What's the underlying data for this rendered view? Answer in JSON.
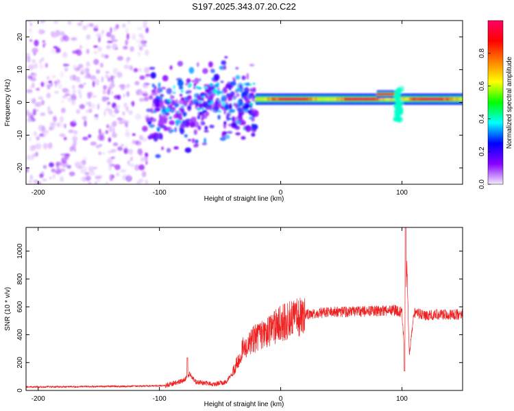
{
  "title": "S197.2025.343.07.20.C22",
  "chart_data": [
    {
      "type": "heatmap",
      "name": "spectrogram",
      "xlabel": "Height of straight line (km)",
      "ylabel": "Frequency (Hz)",
      "xlim": [
        -210,
        150
      ],
      "ylim": [
        -25,
        25
      ],
      "xticks": [
        -200,
        -100,
        0,
        100
      ],
      "yticks": [
        -20,
        -10,
        0,
        10,
        20
      ],
      "colorbar": {
        "label": "Normalized spectral amplitude",
        "range": [
          0,
          1
        ],
        "ticks": [
          0.0,
          0.2,
          0.4,
          0.6,
          0.8
        ],
        "tick_labels": [
          "0.0",
          "0.2",
          "0.4",
          "0.6",
          "0.8"
        ],
        "colormap": [
          "#f4ecfc",
          "#8800ff",
          "#0000ff",
          "#00ffff",
          "#00ff00",
          "#ffff00",
          "#ff8000",
          "#ff0000",
          "#ff0066"
        ]
      },
      "regions": [
        {
          "x_range": [
            -210,
            -110
          ],
          "freq_range": [
            -25,
            25
          ],
          "amplitude": [
            0.02,
            0.15
          ],
          "description": "diffuse noise"
        },
        {
          "x_range": [
            -110,
            -20
          ],
          "freq_range": [
            -12,
            8
          ],
          "amplitude": [
            0.1,
            0.35
          ]
        },
        {
          "x_range": [
            -20,
            150
          ],
          "center_freq": 1,
          "bandwidth_hz": 2,
          "amplitude": [
            0.6,
            0.95
          ]
        },
        {
          "x_range": [
            80,
            95
          ],
          "center_freq": 2.5,
          "amplitude": 0.9
        },
        {
          "x_range": [
            95,
            100
          ],
          "freq_range": [
            -6,
            5
          ],
          "amplitude": 0.4
        }
      ]
    },
    {
      "type": "line",
      "name": "snr",
      "xlabel": "Height of straight line (km)",
      "ylabel": "SNR (10 * v/v)",
      "xlim": [
        -210,
        150
      ],
      "ylim": [
        0,
        1170
      ],
      "xticks": [
        -200,
        -100,
        0,
        100
      ],
      "yticks": [
        0,
        200,
        400,
        600,
        800,
        1000
      ],
      "color": "#ee2222",
      "series": [
        {
          "name": "SNR envelope",
          "x": [
            -210,
            -120,
            -95,
            -80,
            -75,
            -70,
            -55,
            -45,
            -40,
            -35,
            -30,
            -20,
            -10,
            0,
            10,
            20,
            30,
            45,
            60,
            80,
            95,
            100,
            102,
            104,
            106,
            110,
            120,
            135,
            150
          ],
          "y": [
            25,
            30,
            35,
            70,
            120,
            60,
            45,
            60,
            120,
            220,
            320,
            380,
            430,
            480,
            520,
            545,
            555,
            565,
            565,
            570,
            575,
            560,
            300,
            950,
            250,
            560,
            540,
            545,
            545
          ]
        }
      ],
      "annotations": [
        {
          "x": -77,
          "y": 235,
          "note": "local spike"
        },
        {
          "x": 103,
          "y": 1170,
          "note": "max spike"
        },
        {
          "x": 102,
          "y": 140,
          "note": "dip"
        }
      ]
    }
  ]
}
